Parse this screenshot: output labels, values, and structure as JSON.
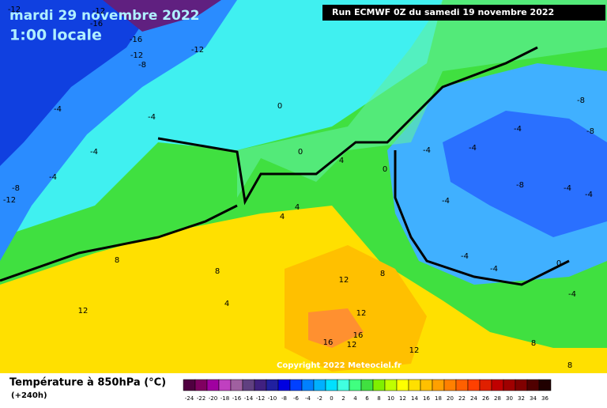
{
  "header": {
    "date": "mardi 29 novembre 2022",
    "time": "1:00 locale",
    "run": "Run ECMWF 0Z du samedi 19 novembre 2022"
  },
  "map": {
    "copyright": "Copyright 2022 Meteociel.fr",
    "contour_labels": [
      -12,
      -16,
      -12,
      -16,
      -12,
      -8,
      -12,
      -4,
      -4,
      -4,
      -4,
      -8,
      -12,
      0,
      0,
      0,
      4,
      4,
      4,
      4,
      8,
      8,
      12,
      12,
      12,
      16,
      16,
      12,
      12,
      8,
      -4,
      -4,
      -4,
      -8,
      -8,
      -8,
      -4,
      -4,
      -4,
      -4,
      0,
      -4,
      8,
      -4,
      8
    ]
  },
  "legend": {
    "title": "Température à 850hPa (°C)",
    "lead": "(+240h)",
    "values": [
      -24,
      -22,
      -20,
      -18,
      -16,
      -14,
      -12,
      -10,
      -8,
      -6,
      -4,
      -2,
      0,
      2,
      4,
      6,
      8,
      10,
      12,
      14,
      16,
      18,
      20,
      22,
      24,
      26,
      28,
      30,
      32,
      34,
      36
    ],
    "colors": [
      "#500040",
      "#800060",
      "#a000a0",
      "#c040c0",
      "#a060a0",
      "#604080",
      "#402080",
      "#2020a0",
      "#0000e0",
      "#0040ff",
      "#0080ff",
      "#00b0ff",
      "#00e0ff",
      "#40ffe0",
      "#40ff80",
      "#40e040",
      "#80f000",
      "#c0ff00",
      "#ffff00",
      "#ffe000",
      "#ffc000",
      "#ffa000",
      "#ff8000",
      "#ff6000",
      "#ff4000",
      "#e02000",
      "#c00000",
      "#a00000",
      "#800000",
      "#500000",
      "#200000"
    ]
  }
}
